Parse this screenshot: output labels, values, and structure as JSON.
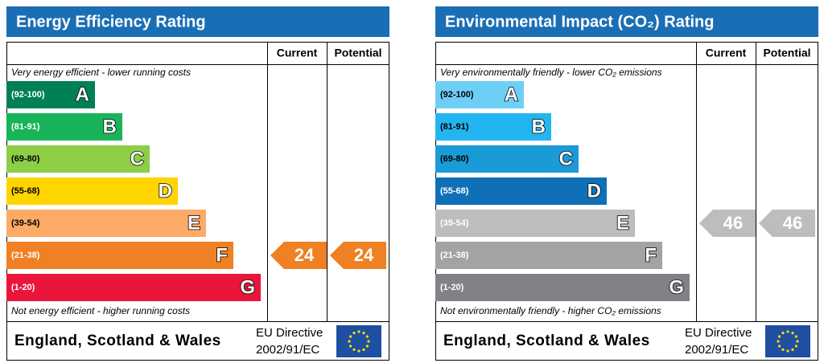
{
  "panels": [
    {
      "title": "Energy Efficiency Rating",
      "columns": [
        "Current",
        "Potential"
      ],
      "top_note": "Very energy efficient - lower running costs",
      "bottom_note": "Not energy efficient - higher running costs",
      "bands": [
        {
          "range": "(92-100)",
          "letter": "A",
          "color": "#008054"
        },
        {
          "range": "(81-91)",
          "letter": "B",
          "color": "#19b459"
        },
        {
          "range": "(69-80)",
          "letter": "C",
          "color": "#8dce46"
        },
        {
          "range": "(55-68)",
          "letter": "D",
          "color": "#ffd500"
        },
        {
          "range": "(39-54)",
          "letter": "E",
          "color": "#fcaa65"
        },
        {
          "range": "(21-38)",
          "letter": "F",
          "color": "#ef8023"
        },
        {
          "range": "(1-20)",
          "letter": "G",
          "color": "#e9153b"
        }
      ],
      "current": 24,
      "potential": 24,
      "footer": "England, Scotland & Wales",
      "directive": [
        "EU Directive",
        "2002/91/EC"
      ]
    },
    {
      "title": "Environmental Impact (CO₂) Rating",
      "columns": [
        "Current",
        "Potential"
      ],
      "top_note": "Very environmentally friendly - lower CO₂ emissions",
      "bottom_note": "Not environmentally friendly - higher CO₂ emissions",
      "bands": [
        {
          "range": "(92-100)",
          "letter": "A",
          "color": "#6dcff6"
        },
        {
          "range": "(81-91)",
          "letter": "B",
          "color": "#22b5f0"
        },
        {
          "range": "(69-80)",
          "letter": "C",
          "color": "#1a9ad6"
        },
        {
          "range": "(55-68)",
          "letter": "D",
          "color": "#0f70b8"
        },
        {
          "range": "(39-54)",
          "letter": "E",
          "color": "#bbbdbf"
        },
        {
          "range": "(21-38)",
          "letter": "F",
          "color": "#a2a3a5"
        },
        {
          "range": "(1-20)",
          "letter": "G",
          "color": "#808285"
        }
      ],
      "current": 46,
      "potential": 46,
      "footer": "England, Scotland & Wales",
      "directive": [
        "EU Directive",
        "2002/91/EC"
      ]
    }
  ]
}
